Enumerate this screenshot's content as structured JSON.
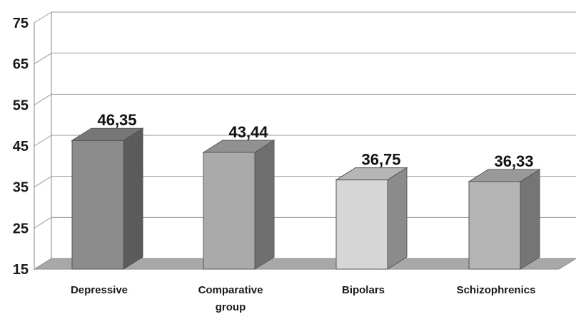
{
  "chart_data": {
    "type": "bar",
    "title": "",
    "xlabel": "",
    "ylabel": "",
    "categories": [
      [
        "Depressive"
      ],
      [
        "Comparative",
        "group"
      ],
      [
        "Bipolars"
      ],
      [
        "Schizophrenics"
      ]
    ],
    "values": [
      46.35,
      43.44,
      36.75,
      36.33
    ],
    "value_labels": [
      "46,35",
      "43,44",
      "36,75",
      "36,33"
    ],
    "y_ticks": [
      15,
      25,
      35,
      45,
      55,
      65,
      75
    ],
    "ylim": [
      15,
      75
    ],
    "grid": true,
    "bar_colors": [
      "#8c8c8c",
      "#aaaaaa",
      "#d6d6d6",
      "#b4b4b4"
    ],
    "floor_color": "#a8a8a8",
    "grid_color": "#999999"
  }
}
